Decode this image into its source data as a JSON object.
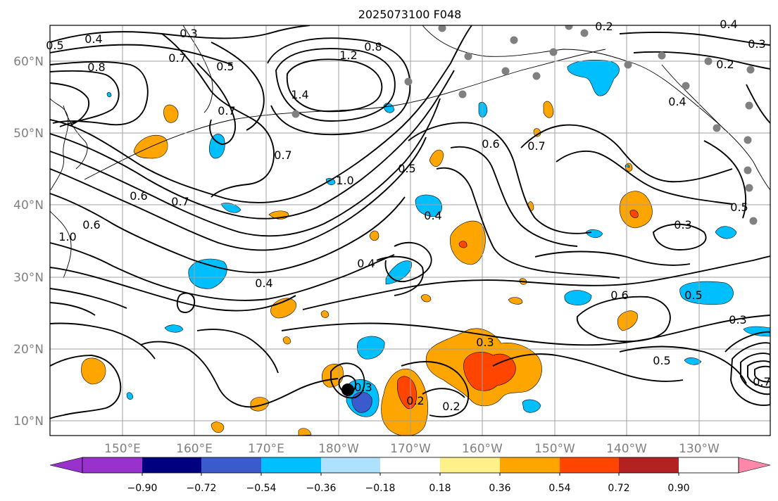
{
  "title": "2025073100 F048",
  "lat_labels": [
    "60°N",
    "50°N",
    "40°N",
    "30°N",
    "20°N",
    "10°N"
  ],
  "lon_labels": [
    "150°E",
    "160°E",
    "170°E",
    "180°W",
    "170°W",
    "160°W",
    "150°W",
    "140°W",
    "130°W"
  ],
  "colorbar": {
    "colors": [
      "#9932cc",
      "#000080",
      "#3a5bcd",
      "#00bfff",
      "#aee2fc",
      "#ffffff",
      "#fff08a",
      "#ffa500",
      "#ff4500",
      "#b22222",
      "#ff88aa"
    ],
    "tick_labels": [
      "−0.90",
      "−0.72",
      "−0.54",
      "−0.36",
      "−0.18",
      "0.18",
      "0.36",
      "0.54",
      "0.72",
      "0.90"
    ]
  },
  "contour_labels": [
    "0.3",
    "0.4",
    "0.5",
    "0.6",
    "0.7",
    "0.8",
    "1.0",
    "1.2",
    "1.4",
    "0.2",
    "0.6",
    "0.7",
    "0.5",
    "0.4",
    "0.3",
    "0.6",
    "0.7",
    "0.5",
    "0.3",
    "0.2",
    "0.5",
    "0.6",
    "0.7",
    "0.3",
    "0.5",
    "0.3",
    "0.4",
    "0.2",
    "1.0",
    "0.8",
    "0.6",
    "0.4"
  ],
  "colors": {
    "contour": "#000000",
    "grid": "#a0a0a0",
    "station": "#808080",
    "typhoon": "#000000"
  }
}
